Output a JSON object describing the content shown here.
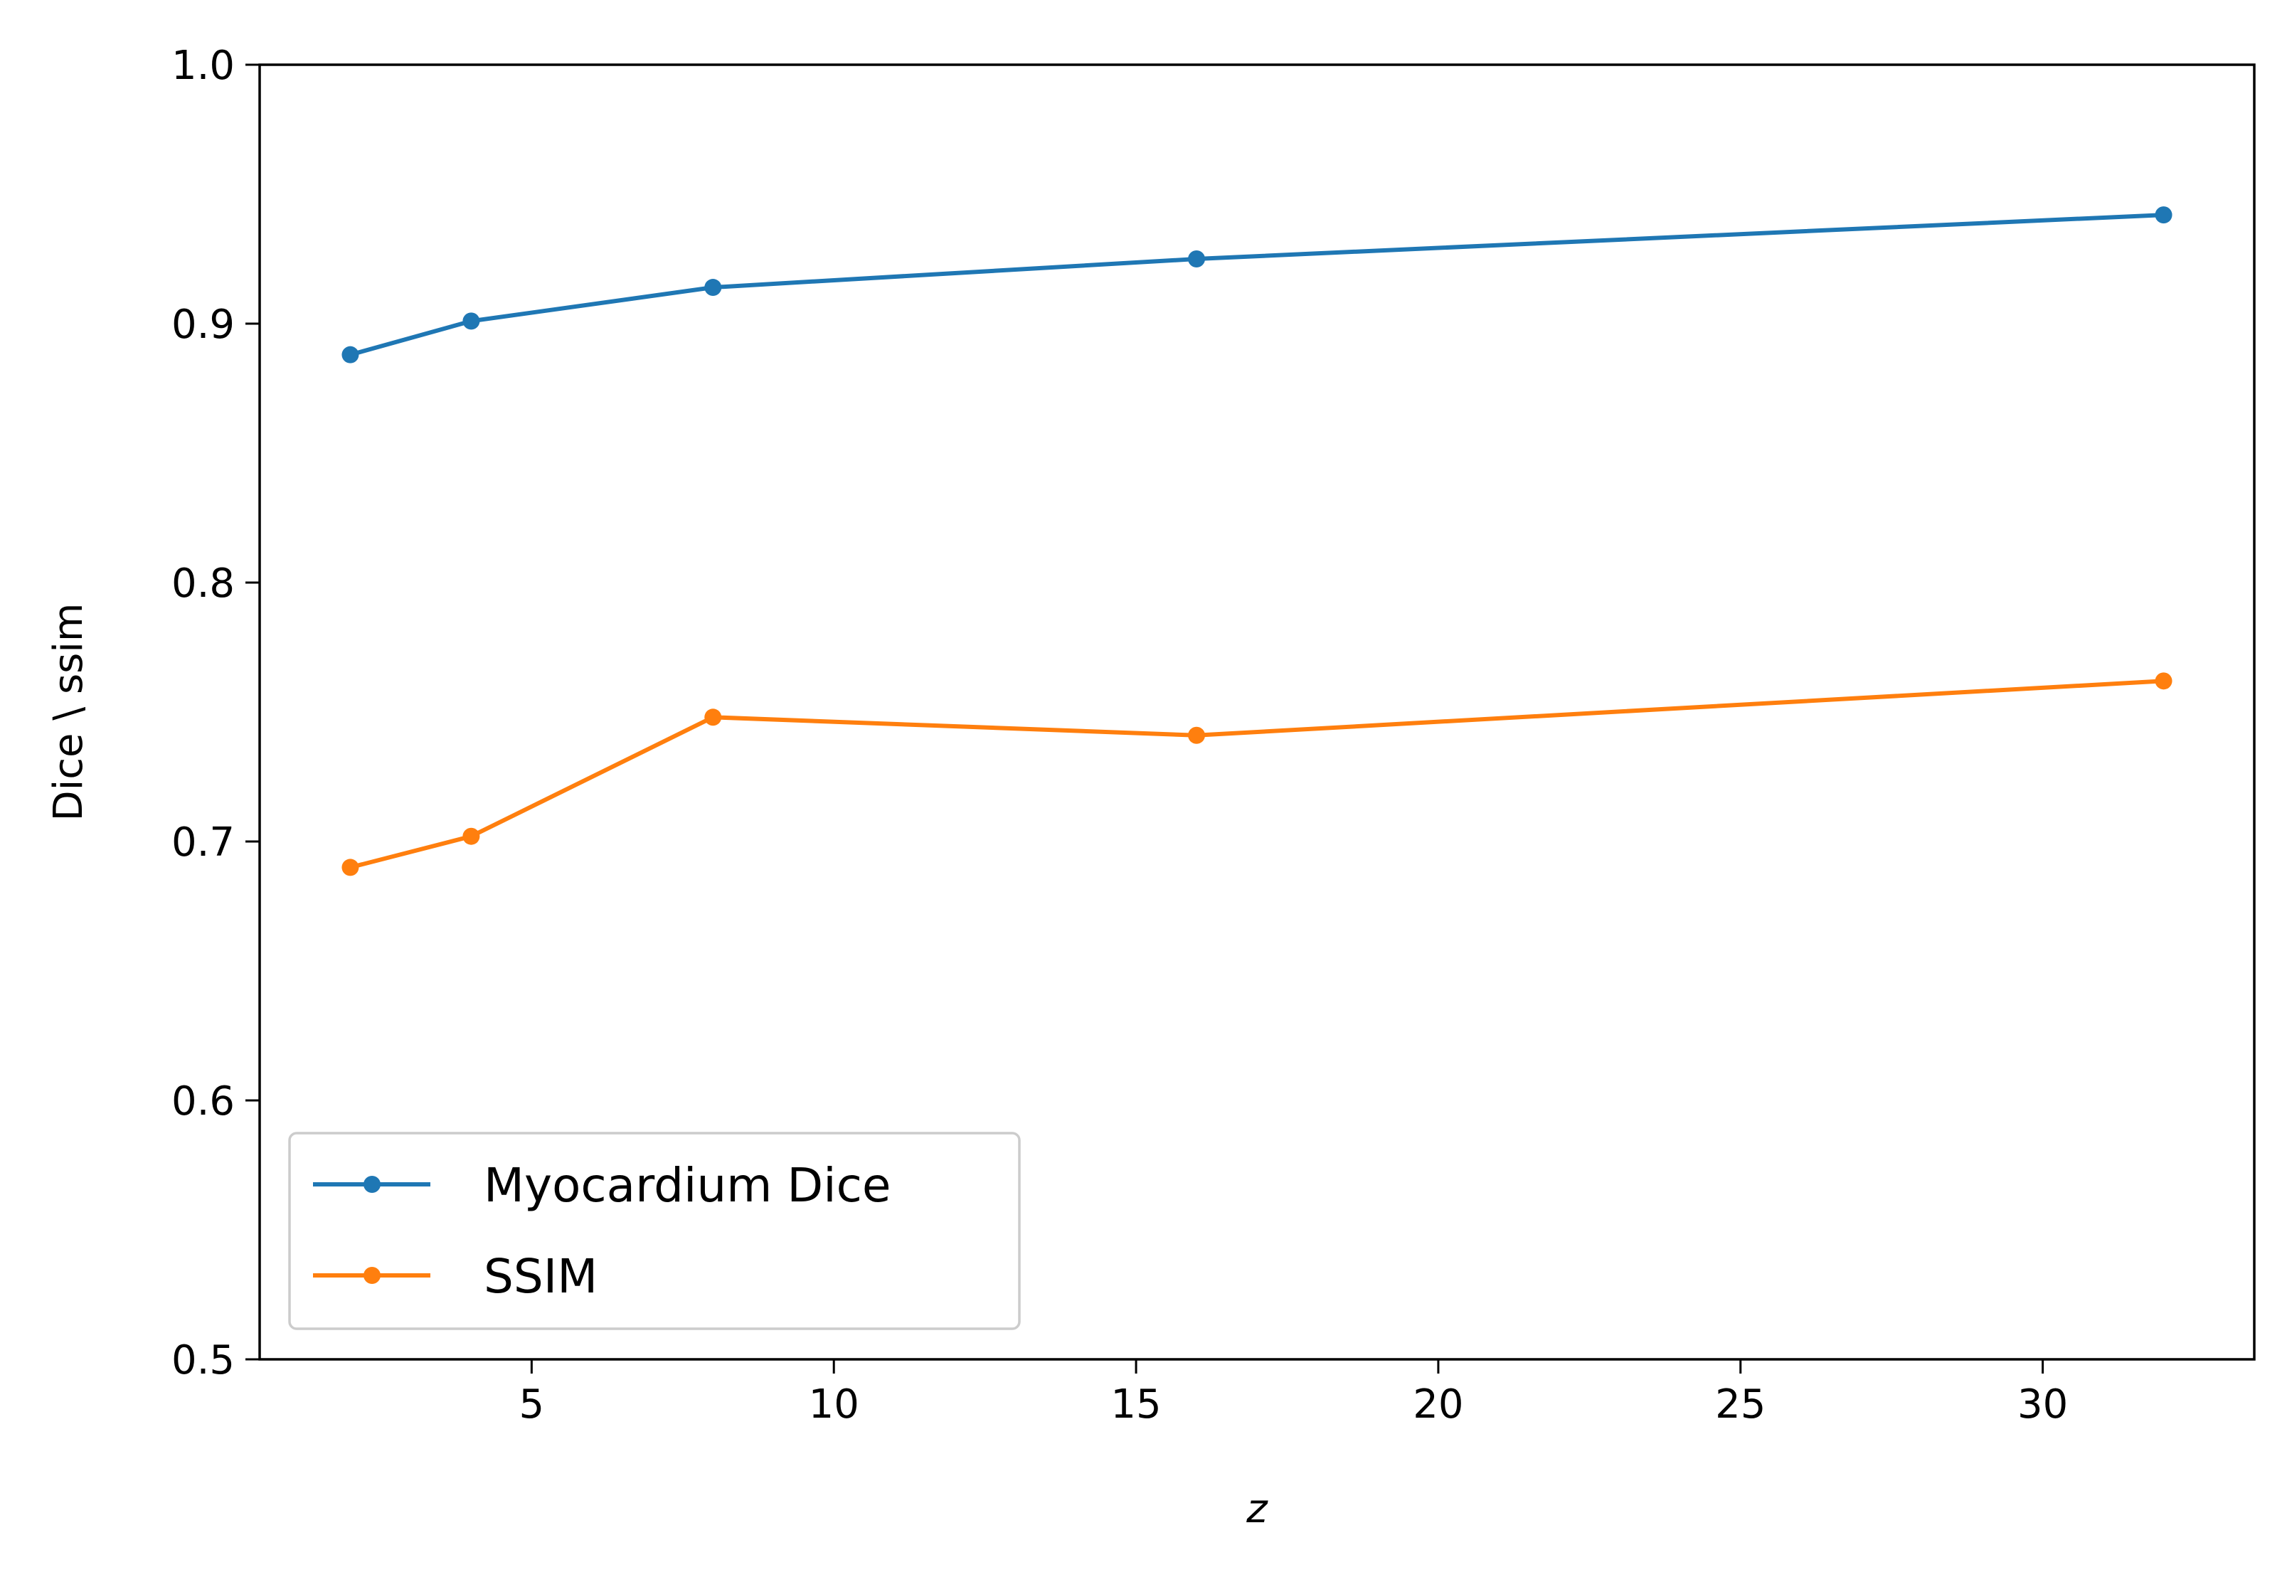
{
  "chart_data": {
    "type": "line",
    "title": "",
    "xlabel": "z",
    "ylabel": "Dice \\ ssim",
    "xlim": [
      0.5,
      33.5
    ],
    "ylim": [
      0.5,
      1.0
    ],
    "xticks": [
      5,
      10,
      15,
      20,
      25,
      30
    ],
    "yticks": [
      0.5,
      0.6,
      0.7,
      0.8,
      0.9,
      1.0
    ],
    "xtick_labels": [
      "5",
      "10",
      "15",
      "20",
      "25",
      "30"
    ],
    "ytick_labels": [
      "0.5",
      "0.6",
      "0.7",
      "0.8",
      "0.9",
      "1.0"
    ],
    "x": [
      2,
      4,
      8,
      16,
      32
    ],
    "series": [
      {
        "name": "Myocardium Dice",
        "values": [
          0.888,
          0.901,
          0.914,
          0.925,
          0.942
        ],
        "color": "#1f77b4",
        "marker": "circle"
      },
      {
        "name": "SSIM",
        "values": [
          0.69,
          0.702,
          0.748,
          0.741,
          0.762
        ],
        "color": "#ff7f0e",
        "marker": "circle"
      }
    ],
    "grid": false,
    "legend_position": "lower-left"
  }
}
